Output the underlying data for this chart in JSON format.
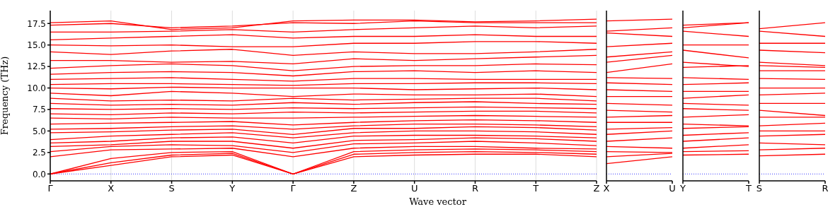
{
  "chart_data": [
    {
      "type": "line",
      "ylabel": "Frequency (THz)",
      "xlabel": "Wave vector",
      "grid": "x",
      "categories": [
        "Γ",
        "X",
        "S",
        "Y",
        "Γ",
        "Z",
        "U",
        "R",
        "T",
        "Z"
      ],
      "ylim": [
        -0.8,
        19
      ],
      "yticks": [
        {
          "value": 0,
          "label": "0.0"
        },
        {
          "value": 2.5,
          "label": "2.5"
        },
        {
          "value": 5,
          "label": "5.0"
        },
        {
          "value": 7.5,
          "label": "7.5"
        },
        {
          "value": 10,
          "label": "10.0"
        },
        {
          "value": 12.5,
          "label": "12.5"
        },
        {
          "value": 15,
          "label": "15.0"
        },
        {
          "value": 17.5,
          "label": "17.5"
        }
      ],
      "ref_lines": [
        {
          "axis": "y",
          "value": 0,
          "color": "#0000ff",
          "line_style": "dotted"
        }
      ],
      "series": [
        {
          "color": "#ff0000",
          "values": [
            0,
            1.0,
            2.0,
            2.2,
            0,
            2.0,
            2.2,
            2.3,
            2.3,
            2.0
          ]
        },
        {
          "color": "#ff0000",
          "values": [
            0,
            1.3,
            2.2,
            2.4,
            0,
            2.3,
            2.5,
            2.6,
            2.5,
            2.3
          ]
        },
        {
          "color": "#ff0000",
          "values": [
            0,
            1.8,
            2.5,
            2.6,
            0,
            2.6,
            2.8,
            2.9,
            2.8,
            2.6
          ]
        },
        {
          "color": "#ff0000",
          "values": [
            2.0,
            2.8,
            2.9,
            3.0,
            2.0,
            3.0,
            3.2,
            3.2,
            3.0,
            2.9
          ]
        },
        {
          "color": "#ff0000",
          "values": [
            2.6,
            3.2,
            3.4,
            3.3,
            2.5,
            3.5,
            3.6,
            3.8,
            3.6,
            3.3
          ]
        },
        {
          "color": "#ff0000",
          "values": [
            3.2,
            3.4,
            3.8,
            3.8,
            3.0,
            3.9,
            4.0,
            4.2,
            4.1,
            3.8
          ]
        },
        {
          "color": "#ff0000",
          "values": [
            3.6,
            3.8,
            4.2,
            4.3,
            3.6,
            4.4,
            4.5,
            4.5,
            4.4,
            4.2
          ]
        },
        {
          "color": "#ff0000",
          "values": [
            4.0,
            4.4,
            4.6,
            4.8,
            4.2,
            4.8,
            5.0,
            5.0,
            4.9,
            4.6
          ]
        },
        {
          "color": "#ff0000",
          "values": [
            4.8,
            4.9,
            5.1,
            5.2,
            4.6,
            5.3,
            5.3,
            5.5,
            5.4,
            5.1
          ]
        },
        {
          "color": "#ff0000",
          "values": [
            5.2,
            5.3,
            5.5,
            5.6,
            5.2,
            5.6,
            5.8,
            5.8,
            5.7,
            5.5
          ]
        },
        {
          "color": "#ff0000",
          "values": [
            5.8,
            5.9,
            6.0,
            6.1,
            5.7,
            6.0,
            6.2,
            6.3,
            6.2,
            6.0
          ]
        },
        {
          "color": "#ff0000",
          "values": [
            6.5,
            6.4,
            6.6,
            6.5,
            6.5,
            6.6,
            6.7,
            6.8,
            6.7,
            6.6
          ]
        },
        {
          "color": "#ff0000",
          "values": [
            7.0,
            6.9,
            7.1,
            7.0,
            7.2,
            7.1,
            7.2,
            7.3,
            7.3,
            7.1
          ]
        },
        {
          "color": "#ff0000",
          "values": [
            7.6,
            7.5,
            7.6,
            7.5,
            7.7,
            7.6,
            7.7,
            7.8,
            7.7,
            7.6
          ]
        },
        {
          "color": "#ff0000",
          "values": [
            8.2,
            8.0,
            8.1,
            8.0,
            8.3,
            8.1,
            8.3,
            8.4,
            8.2,
            8.1
          ]
        },
        {
          "color": "#ff0000",
          "values": [
            8.8,
            8.5,
            8.6,
            8.5,
            8.8,
            8.6,
            8.7,
            8.8,
            8.8,
            8.5
          ]
        },
        {
          "color": "#ff0000",
          "values": [
            9.4,
            9.1,
            9.6,
            9.4,
            9.0,
            9.3,
            9.2,
            9.2,
            9.3,
            9.0
          ]
        },
        {
          "color": "#ff0000",
          "values": [
            10.0,
            9.9,
            10.1,
            10.0,
            10.0,
            10.0,
            9.8,
            9.9,
            10.0,
            9.8
          ]
        },
        {
          "color": "#ff0000",
          "values": [
            10.4,
            10.5,
            10.5,
            10.4,
            10.3,
            10.5,
            10.5,
            10.6,
            10.6,
            10.5
          ]
        },
        {
          "color": "#ff0000",
          "values": [
            11.0,
            11.1,
            11.2,
            11.0,
            10.8,
            11.1,
            11.1,
            11.0,
            11.0,
            11.0
          ]
        },
        {
          "color": "#ff0000",
          "values": [
            11.6,
            11.8,
            11.9,
            11.8,
            11.4,
            11.9,
            12.0,
            11.8,
            12.0,
            11.8
          ]
        },
        {
          "color": "#ff0000",
          "values": [
            12.3,
            12.6,
            12.8,
            12.6,
            12.0,
            12.5,
            12.6,
            12.6,
            12.8,
            12.7
          ]
        },
        {
          "color": "#ff0000",
          "values": [
            13.2,
            13.2,
            13.0,
            13.1,
            12.8,
            13.4,
            13.2,
            13.4,
            13.6,
            13.8
          ]
        },
        {
          "color": "#ff0000",
          "values": [
            14.2,
            13.9,
            14.3,
            14.5,
            13.8,
            14.2,
            14.0,
            14.0,
            14.2,
            14.5
          ]
        },
        {
          "color": "#ff0000",
          "values": [
            15.0,
            14.9,
            15.0,
            14.8,
            14.8,
            15.2,
            15.2,
            15.4,
            15.4,
            15.2
          ]
        },
        {
          "color": "#ff0000",
          "values": [
            15.6,
            15.8,
            16.0,
            16.2,
            15.8,
            16.0,
            16.0,
            16.2,
            16.0,
            16.0
          ]
        },
        {
          "color": "#ff0000",
          "values": [
            16.5,
            16.5,
            16.6,
            16.8,
            16.5,
            16.8,
            17.0,
            17.2,
            17.0,
            17.2
          ]
        },
        {
          "color": "#ff0000",
          "values": [
            17.3,
            17.5,
            17.0,
            17.2,
            17.6,
            17.5,
            17.8,
            17.6,
            17.6,
            17.6
          ]
        },
        {
          "color": "#ff0000",
          "values": [
            17.6,
            17.8,
            16.8,
            17.0,
            17.8,
            17.9,
            17.9,
            17.7,
            17.8,
            18.0
          ]
        }
      ]
    },
    {
      "type": "line",
      "tick_labels": "x",
      "categories": [
        "X",
        "U"
      ],
      "ylim": [
        -0.8,
        19
      ],
      "yticks": [
        {
          "value": 0,
          "label": null
        },
        {
          "value": 2.5,
          "label": null
        },
        {
          "value": 5,
          "label": null
        },
        {
          "value": 7.5,
          "label": null
        },
        {
          "value": 10,
          "label": null
        },
        {
          "value": 12.5,
          "label": null
        },
        {
          "value": 15,
          "label": null
        },
        {
          "value": 17.5,
          "label": null
        }
      ],
      "ref_lines": [
        {
          "axis": "y",
          "value": 0,
          "color": "#0000ff",
          "line_style": "dotted"
        }
      ],
      "series": [
        {
          "color": "#ff0000",
          "values": [
            1.2,
            2.0
          ]
        },
        {
          "color": "#ff0000",
          "values": [
            2.0,
            2.4
          ]
        },
        {
          "color": "#ff0000",
          "values": [
            2.6,
            2.5
          ]
        },
        {
          "color": "#ff0000",
          "values": [
            3.2,
            3.0
          ]
        },
        {
          "color": "#ff0000",
          "values": [
            3.8,
            4.2
          ]
        },
        {
          "color": "#ff0000",
          "values": [
            4.6,
            5.0
          ]
        },
        {
          "color": "#ff0000",
          "values": [
            5.2,
            5.4
          ]
        },
        {
          "color": "#ff0000",
          "values": [
            6.0,
            6.0
          ]
        },
        {
          "color": "#ff0000",
          "values": [
            6.6,
            6.8
          ]
        },
        {
          "color": "#ff0000",
          "values": [
            7.4,
            7.2
          ]
        },
        {
          "color": "#ff0000",
          "values": [
            8.2,
            8.0
          ]
        },
        {
          "color": "#ff0000",
          "values": [
            9.0,
            9.0
          ]
        },
        {
          "color": "#ff0000",
          "values": [
            9.8,
            9.6
          ]
        },
        {
          "color": "#ff0000",
          "values": [
            10.6,
            10.4
          ]
        },
        {
          "color": "#ff0000",
          "values": [
            11.2,
            11.1
          ]
        },
        {
          "color": "#ff0000",
          "values": [
            11.8,
            12.8
          ]
        },
        {
          "color": "#ff0000",
          "values": [
            13.0,
            13.8
          ]
        },
        {
          "color": "#ff0000",
          "values": [
            13.6,
            14.2
          ]
        },
        {
          "color": "#ff0000",
          "values": [
            14.8,
            15.2
          ]
        },
        {
          "color": "#ff0000",
          "values": [
            16.4,
            16.0
          ]
        },
        {
          "color": "#ff0000",
          "values": [
            16.6,
            17.0
          ]
        },
        {
          "color": "#ff0000",
          "values": [
            17.8,
            18.0
          ]
        }
      ]
    },
    {
      "type": "line",
      "tick_labels": "x",
      "categories": [
        "Y",
        "T"
      ],
      "ylim": [
        -0.8,
        19
      ],
      "yticks": [
        {
          "value": 0,
          "label": null
        },
        {
          "value": 2.5,
          "label": null
        },
        {
          "value": 5,
          "label": null
        },
        {
          "value": 7.5,
          "label": null
        },
        {
          "value": 10,
          "label": null
        },
        {
          "value": 12.5,
          "label": null
        },
        {
          "value": 15,
          "label": null
        },
        {
          "value": 17.5,
          "label": null
        }
      ],
      "ref_lines": [
        {
          "axis": "y",
          "value": 0,
          "color": "#0000ff",
          "line_style": "dotted"
        }
      ],
      "series": [
        {
          "color": "#ff0000",
          "values": [
            2.2,
            2.3
          ]
        },
        {
          "color": "#ff0000",
          "values": [
            2.6,
            2.7
          ]
        },
        {
          "color": "#ff0000",
          "values": [
            3.0,
            3.4
          ]
        },
        {
          "color": "#ff0000",
          "values": [
            3.8,
            4.2
          ]
        },
        {
          "color": "#ff0000",
          "values": [
            4.5,
            4.8
          ]
        },
        {
          "color": "#ff0000",
          "values": [
            5.3,
            5.5
          ]
        },
        {
          "color": "#ff0000",
          "values": [
            5.8,
            5.6
          ]
        },
        {
          "color": "#ff0000",
          "values": [
            6.6,
            6.9
          ]
        },
        {
          "color": "#ff0000",
          "values": [
            7.6,
            7.4
          ]
        },
        {
          "color": "#ff0000",
          "values": [
            8.2,
            8.0
          ]
        },
        {
          "color": "#ff0000",
          "values": [
            8.8,
            9.2
          ]
        },
        {
          "color": "#ff0000",
          "values": [
            9.6,
            9.6
          ]
        },
        {
          "color": "#ff0000",
          "values": [
            10.4,
            10.6
          ]
        },
        {
          "color": "#ff0000",
          "values": [
            11.2,
            11.0
          ]
        },
        {
          "color": "#ff0000",
          "values": [
            12.4,
            12.6
          ]
        },
        {
          "color": "#ff0000",
          "values": [
            13.0,
            12.5
          ]
        },
        {
          "color": "#ff0000",
          "values": [
            14.4,
            13.5
          ]
        },
        {
          "color": "#ff0000",
          "values": [
            15.0,
            15.0
          ]
        },
        {
          "color": "#ff0000",
          "values": [
            16.6,
            16.0
          ]
        },
        {
          "color": "#ff0000",
          "values": [
            17.0,
            17.6
          ]
        },
        {
          "color": "#ff0000",
          "values": [
            17.3,
            17.6
          ]
        }
      ]
    },
    {
      "type": "line",
      "tick_labels": "x",
      "categories": [
        "S",
        "R"
      ],
      "ylim": [
        -0.8,
        19
      ],
      "yticks": [
        {
          "value": 0,
          "label": null
        },
        {
          "value": 2.5,
          "label": null
        },
        {
          "value": 5,
          "label": null
        },
        {
          "value": 7.5,
          "label": null
        },
        {
          "value": 10,
          "label": null
        },
        {
          "value": 12.5,
          "label": null
        },
        {
          "value": 15,
          "label": null
        },
        {
          "value": 17.5,
          "label": null
        }
      ],
      "ref_lines": [
        {
          "axis": "y",
          "value": 0,
          "color": "#0000ff",
          "line_style": "dotted"
        }
      ],
      "series": [
        {
          "color": "#ff0000",
          "values": [
            2.1,
            2.3
          ]
        },
        {
          "color": "#ff0000",
          "values": [
            2.8,
            3.0
          ]
        },
        {
          "color": "#ff0000",
          "values": [
            3.6,
            3.4
          ]
        },
        {
          "color": "#ff0000",
          "values": [
            4.4,
            4.6
          ]
        },
        {
          "color": "#ff0000",
          "values": [
            5.0,
            5.0
          ]
        },
        {
          "color": "#ff0000",
          "values": [
            5.6,
            5.9
          ]
        },
        {
          "color": "#ff0000",
          "values": [
            6.6,
            6.6
          ]
        },
        {
          "color": "#ff0000",
          "values": [
            7.4,
            6.8
          ]
        },
        {
          "color": "#ff0000",
          "values": [
            8.2,
            8.2
          ]
        },
        {
          "color": "#ff0000",
          "values": [
            9.2,
            9.4
          ]
        },
        {
          "color": "#ff0000",
          "values": [
            10.0,
            10.0
          ]
        },
        {
          "color": "#ff0000",
          "values": [
            11.1,
            11.0
          ]
        },
        {
          "color": "#ff0000",
          "values": [
            12.0,
            12.0
          ]
        },
        {
          "color": "#ff0000",
          "values": [
            12.6,
            12.4
          ]
        },
        {
          "color": "#ff0000",
          "values": [
            13.0,
            12.6
          ]
        },
        {
          "color": "#ff0000",
          "values": [
            14.4,
            14.1
          ]
        },
        {
          "color": "#ff0000",
          "values": [
            15.2,
            15.2
          ]
        },
        {
          "color": "#ff0000",
          "values": [
            16.6,
            16.0
          ]
        },
        {
          "color": "#ff0000",
          "values": [
            16.9,
            17.6
          ]
        }
      ]
    }
  ]
}
